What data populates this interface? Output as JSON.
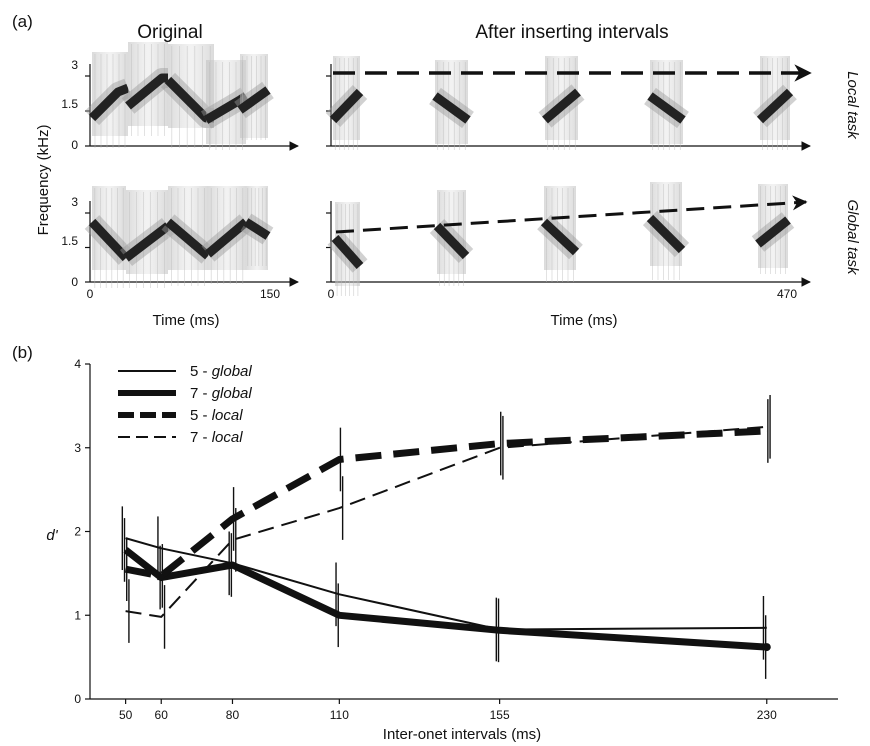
{
  "panel_a": {
    "letter": "(a)",
    "title_left": "Original",
    "title_right": "After inserting intervals",
    "ylabel": "Frequency (kHz)",
    "yticks": [
      "0",
      "1.5",
      "3"
    ],
    "xlabel_left": "Time (ms)",
    "xlabel_right": "Time (ms)",
    "xticks_left": [
      "0",
      "150"
    ],
    "xticks_right": [
      "0",
      "470"
    ],
    "task_top": "Local task",
    "task_bottom": "Global task"
  },
  "chart_data": {
    "type": "line",
    "panel_letter": "(b)",
    "xlabel": "Inter-onet intervals (ms)",
    "ylabel": "d'",
    "x": [
      50,
      60,
      80,
      110,
      155,
      230
    ],
    "xticks": [
      "50",
      "60",
      "80",
      "110",
      "155",
      "230"
    ],
    "yticks": [
      "0",
      "1",
      "2",
      "3",
      "4"
    ],
    "ylim": [
      0,
      4
    ],
    "legend_position": "top-left",
    "series": [
      {
        "name": "5 - global",
        "name_num": "5 - ",
        "name_kind": "global",
        "style": "thin-solid",
        "values": [
          1.92,
          1.8,
          1.62,
          1.25,
          0.83,
          0.85
        ]
      },
      {
        "name": "7 - global",
        "name_num": "7 - ",
        "name_kind": "global",
        "style": "thick-solid",
        "values": [
          1.78,
          1.45,
          1.6,
          1.0,
          0.82,
          0.62
        ]
      },
      {
        "name": "5 - local",
        "name_num": "5 - ",
        "name_kind": "local",
        "style": "thick-dashed",
        "values": [
          1.55,
          1.47,
          2.15,
          2.86,
          3.05,
          3.2
        ]
      },
      {
        "name": "7 - local",
        "name_num": "7 - ",
        "name_kind": "local",
        "style": "thin-dashed",
        "values": [
          1.05,
          0.98,
          1.9,
          2.28,
          3.0,
          3.25
        ]
      }
    ]
  },
  "colors": {
    "ink": "#111111",
    "spectrogram": "#2a2a2a",
    "spectrogram_bg": "#cfcfcf"
  }
}
